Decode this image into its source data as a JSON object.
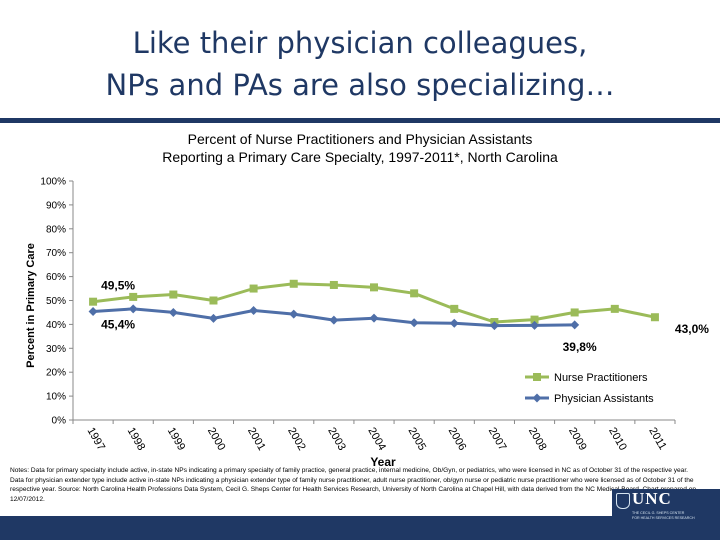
{
  "slide": {
    "title_line1": "Like their physician colleagues,",
    "title_line2": "NPs and PAs are also specializing…",
    "title_color": "#1f3864"
  },
  "chart_data": {
    "type": "line",
    "title_line1": "Percent of Nurse Practitioners and Physician Assistants",
    "title_line2": "Reporting a Primary Care Specialty, 1997-2011*, North Carolina",
    "xlabel": "Year",
    "ylabel": "Percent in Primary Care",
    "ylim": [
      0,
      100
    ],
    "yticks": [
      "0%",
      "10%",
      "20%",
      "30%",
      "40%",
      "50%",
      "60%",
      "70%",
      "80%",
      "90%",
      "100%"
    ],
    "categories": [
      "1997",
      "1998",
      "1999",
      "2000",
      "2001",
      "2002",
      "2003",
      "2004",
      "2005",
      "2006",
      "2007",
      "2008",
      "2009",
      "2010",
      "2011"
    ],
    "series": [
      {
        "name": "Nurse Practitioners",
        "color": "#9bbb59",
        "marker": "square",
        "values": [
          49.5,
          51.5,
          52.5,
          50,
          55,
          57,
          56.5,
          55.5,
          53,
          46.5,
          41,
          42,
          45,
          46.5,
          43
        ]
      },
      {
        "name": "Physician Assistants",
        "color": "#4f6fa8",
        "marker": "diamond",
        "values": [
          45.4,
          46.5,
          45,
          42.5,
          45.8,
          44.3,
          41.8,
          42.6,
          40.7,
          40.5,
          39.5,
          39.6,
          39.8,
          null,
          null
        ]
      }
    ],
    "annotations": [
      {
        "text": "49,5%",
        "series": 0,
        "index": 0,
        "placement": "above-right"
      },
      {
        "text": "45,4%",
        "series": 1,
        "index": 0,
        "placement": "below-right"
      },
      {
        "text": "39,8%",
        "series": 1,
        "index": 12,
        "placement": "below-left"
      },
      {
        "text": "43,0%",
        "series": 0,
        "index": 14,
        "placement": "right"
      }
    ],
    "legend": {
      "position": "bottom-right"
    },
    "grid": false
  },
  "notes": {
    "text": "Notes: Data for primary specialty include active, in-state NPs indicating a primary specialty of family practice, general practice, internal medicine, Ob/Gyn, or pediatrics, who were licensed in NC as of October 31 of the respective year. Data for physician extender type include active in-state NPs indicating a physician extender type of family nurse practitioner, adult nurse practitioner, ob/gyn nurse or pediatric nurse practitioner who were licensed as of October 31 of the respective year. Source: North Carolina Health Professions Data System, Cecil G. Sheps Center for Health Services Research, University of North Carolina at Chapel Hill, with data derived from the NC Medical Board. Chart prepared on 12/07/2012."
  },
  "footer": {
    "logo_text": "UNC",
    "logo_line1": "THE CECIL G. SHEPS CENTER",
    "logo_line2": "FOR HEALTH SERVICES RESEARCH"
  }
}
